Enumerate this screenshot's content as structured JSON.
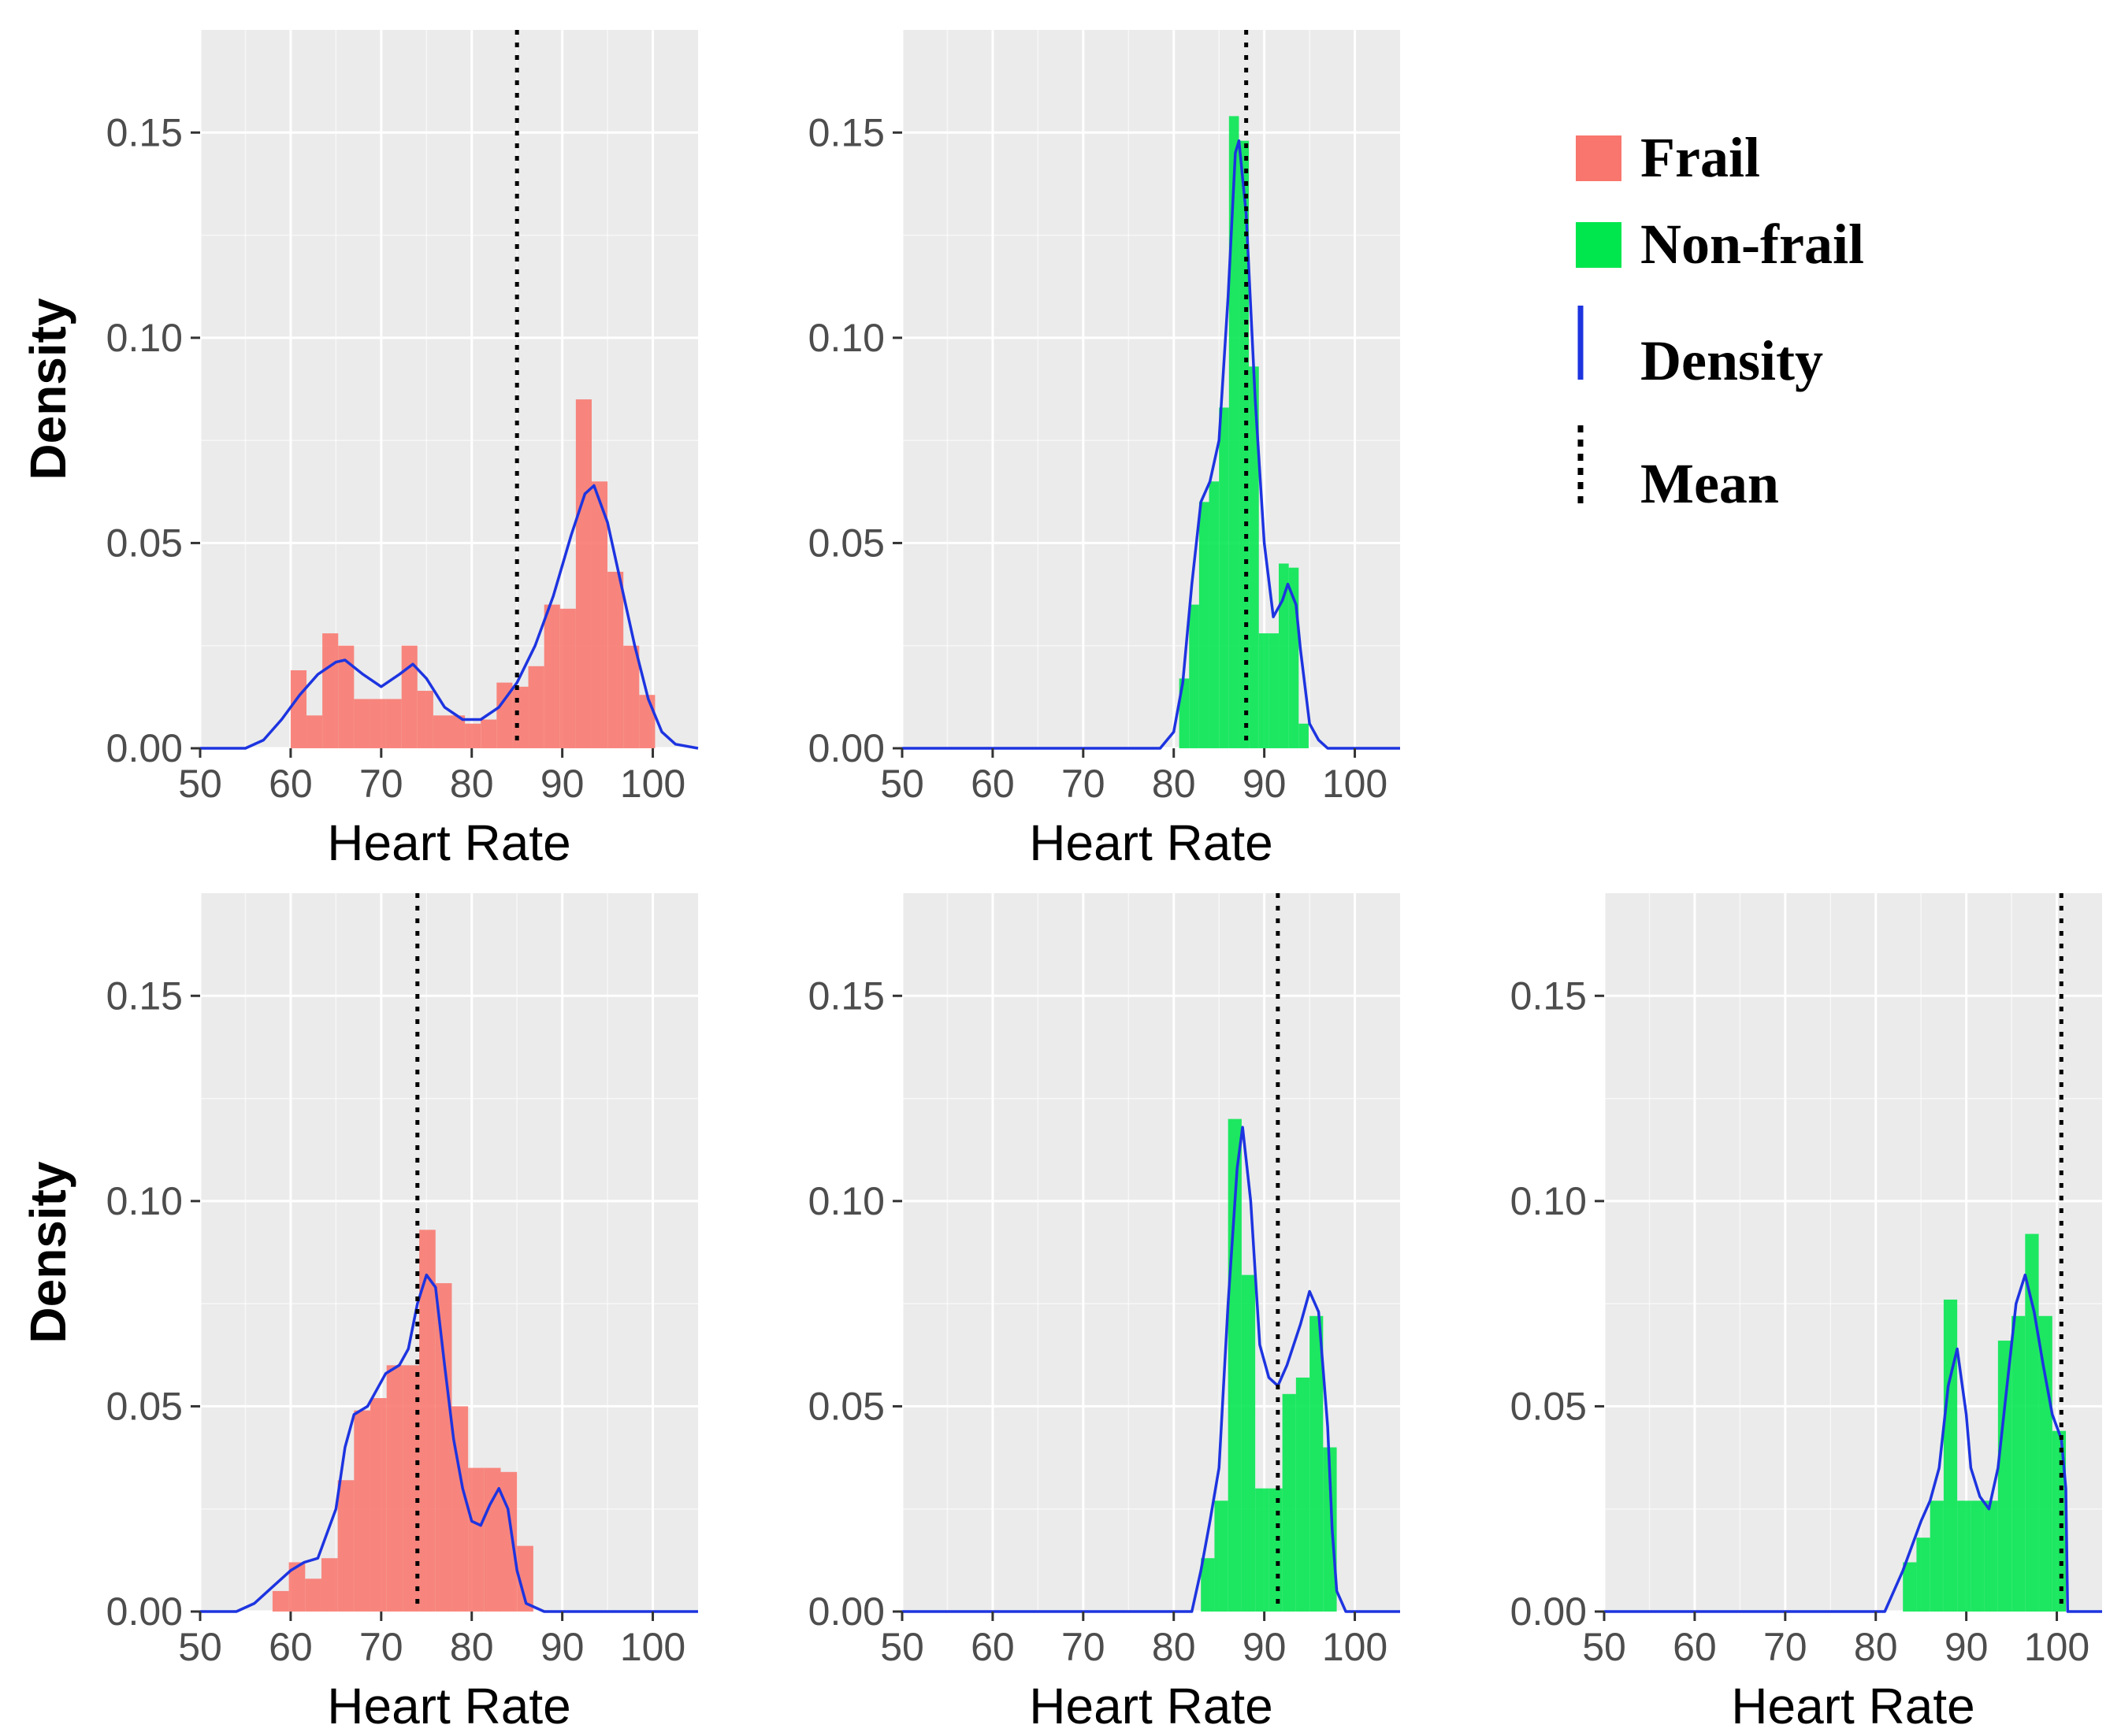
{
  "colors": {
    "frail": "#f8766d",
    "non_frail": "#00e64d",
    "density_line": "#1d34e0",
    "panel_bg": "#ebebeb",
    "grid_major": "#ffffff",
    "mean_line": "#000000"
  },
  "legend": {
    "frail": "Frail",
    "non_frail": "Non-frail",
    "density": "Density",
    "mean": "Mean"
  },
  "chart_data": [
    {
      "type": "histogram",
      "group": "Frail",
      "xlabel": "Heart Rate",
      "ylabel": "Density",
      "xlim": [
        50,
        105
      ],
      "ylim": [
        0,
        0.175
      ],
      "xticks": [
        "50",
        "60",
        "70",
        "80",
        "90",
        "100"
      ],
      "yticks": [
        "0.00",
        "0.05",
        "0.10",
        "0.15"
      ],
      "bin_width": 1.75,
      "bins": [
        [
          60,
          0.019
        ],
        [
          61.75,
          0.008
        ],
        [
          63.5,
          0.028
        ],
        [
          65.25,
          0.025
        ],
        [
          67,
          0.012
        ],
        [
          68.75,
          0.012
        ],
        [
          70.5,
          0.012
        ],
        [
          72.25,
          0.025
        ],
        [
          74,
          0.014
        ],
        [
          75.75,
          0.008
        ],
        [
          77.5,
          0.008
        ],
        [
          79.25,
          0.006
        ],
        [
          81,
          0.007
        ],
        [
          82.75,
          0.016
        ],
        [
          84.5,
          0.015
        ],
        [
          86.25,
          0.02
        ],
        [
          88,
          0.035
        ],
        [
          89.75,
          0.034
        ],
        [
          91.5,
          0.085
        ],
        [
          93.25,
          0.065
        ],
        [
          95,
          0.043
        ],
        [
          96.75,
          0.025
        ],
        [
          98.5,
          0.013
        ]
      ],
      "density": [
        [
          50,
          0
        ],
        [
          55,
          0
        ],
        [
          57,
          0.002
        ],
        [
          59,
          0.007
        ],
        [
          61,
          0.013
        ],
        [
          63,
          0.018
        ],
        [
          65,
          0.021
        ],
        [
          66,
          0.0215
        ],
        [
          68,
          0.018
        ],
        [
          70,
          0.015
        ],
        [
          72,
          0.018
        ],
        [
          73.5,
          0.0205
        ],
        [
          75,
          0.017
        ],
        [
          77,
          0.01
        ],
        [
          79,
          0.007
        ],
        [
          81,
          0.007
        ],
        [
          83,
          0.01
        ],
        [
          85,
          0.016
        ],
        [
          87,
          0.025
        ],
        [
          89,
          0.037
        ],
        [
          91,
          0.052
        ],
        [
          92.5,
          0.062
        ],
        [
          93.5,
          0.064
        ],
        [
          95,
          0.055
        ],
        [
          96.5,
          0.04
        ],
        [
          98,
          0.025
        ],
        [
          99.5,
          0.012
        ],
        [
          101,
          0.004
        ],
        [
          102.5,
          0.001
        ],
        [
          105,
          0
        ]
      ],
      "mean": 85
    },
    {
      "type": "histogram",
      "group": "Non-frail",
      "xlabel": "Heart Rate",
      "ylabel": "",
      "xlim": [
        50,
        105
      ],
      "ylim": [
        0,
        0.175
      ],
      "xticks": [
        "50",
        "60",
        "70",
        "80",
        "90",
        "100"
      ],
      "yticks": [
        "0.00",
        "0.05",
        "0.10",
        "0.15"
      ],
      "bin_width": 1.1,
      "bins": [
        [
          80.6,
          0.017
        ],
        [
          81.7,
          0.035
        ],
        [
          82.8,
          0.06
        ],
        [
          83.9,
          0.065
        ],
        [
          85,
          0.083
        ],
        [
          86.1,
          0.154
        ],
        [
          87.2,
          0.148
        ],
        [
          88.3,
          0.093
        ],
        [
          89.4,
          0.028
        ],
        [
          90.5,
          0.028
        ],
        [
          91.6,
          0.045
        ],
        [
          92.7,
          0.044
        ],
        [
          93.8,
          0.006
        ]
      ],
      "density": [
        [
          50,
          0
        ],
        [
          78.5,
          0
        ],
        [
          80,
          0.004
        ],
        [
          81,
          0.016
        ],
        [
          82,
          0.04
        ],
        [
          83,
          0.06
        ],
        [
          84,
          0.065
        ],
        [
          85,
          0.075
        ],
        [
          86,
          0.11
        ],
        [
          86.8,
          0.145
        ],
        [
          87.2,
          0.148
        ],
        [
          88,
          0.13
        ],
        [
          89,
          0.085
        ],
        [
          90,
          0.05
        ],
        [
          91,
          0.032
        ],
        [
          92,
          0.036
        ],
        [
          92.6,
          0.04
        ],
        [
          93.5,
          0.035
        ],
        [
          94,
          0.024
        ],
        [
          95,
          0.006
        ],
        [
          96,
          0.002
        ],
        [
          97,
          0
        ],
        [
          105,
          0
        ]
      ],
      "mean": 88
    },
    {
      "type": "histogram",
      "group": "Frail",
      "xlabel": "Heart Rate",
      "ylabel": "Density",
      "xlim": [
        50,
        105
      ],
      "ylim": [
        0,
        0.175
      ],
      "xticks": [
        "50",
        "60",
        "70",
        "80",
        "90",
        "100"
      ],
      "yticks": [
        "0.00",
        "0.05",
        "0.10",
        "0.15"
      ],
      "bin_width": 1.8,
      "bins": [
        [
          58,
          0.005
        ],
        [
          59.8,
          0.012
        ],
        [
          61.6,
          0.008
        ],
        [
          63.4,
          0.013
        ],
        [
          65.2,
          0.032
        ],
        [
          67,
          0.049
        ],
        [
          68.8,
          0.052
        ],
        [
          70.6,
          0.06
        ],
        [
          72.4,
          0.06
        ],
        [
          74.2,
          0.093
        ],
        [
          76,
          0.08
        ],
        [
          77.8,
          0.05
        ],
        [
          79.6,
          0.035
        ],
        [
          81.4,
          0.035
        ],
        [
          83.2,
          0.034
        ],
        [
          85,
          0.016
        ]
      ],
      "density": [
        [
          50,
          0
        ],
        [
          54,
          0
        ],
        [
          56,
          0.002
        ],
        [
          58,
          0.006
        ],
        [
          60,
          0.01
        ],
        [
          61.5,
          0.012
        ],
        [
          63,
          0.013
        ],
        [
          65,
          0.025
        ],
        [
          66,
          0.04
        ],
        [
          67,
          0.048
        ],
        [
          68.5,
          0.05
        ],
        [
          70.5,
          0.058
        ],
        [
          72,
          0.06
        ],
        [
          73,
          0.064
        ],
        [
          74,
          0.075
        ],
        [
          75,
          0.082
        ],
        [
          76,
          0.079
        ],
        [
          77,
          0.06
        ],
        [
          78,
          0.042
        ],
        [
          79,
          0.03
        ],
        [
          80,
          0.022
        ],
        [
          81,
          0.021
        ],
        [
          82,
          0.026
        ],
        [
          83,
          0.03
        ],
        [
          84,
          0.025
        ],
        [
          85,
          0.01
        ],
        [
          86,
          0.002
        ],
        [
          88,
          0
        ],
        [
          105,
          0
        ]
      ],
      "mean": 74
    },
    {
      "type": "histogram",
      "group": "Non-frail",
      "xlabel": "Heart Rate",
      "ylabel": "",
      "xlim": [
        50,
        105
      ],
      "ylim": [
        0,
        0.175
      ],
      "xticks": [
        "50",
        "60",
        "70",
        "80",
        "90",
        "100"
      ],
      "yticks": [
        "0.00",
        "0.05",
        "0.10",
        "0.15"
      ],
      "bin_width": 1.5,
      "bins": [
        [
          83,
          0.013
        ],
        [
          84.5,
          0.027
        ],
        [
          86,
          0.12
        ],
        [
          87.5,
          0.082
        ],
        [
          89,
          0.03
        ],
        [
          90.5,
          0.03
        ],
        [
          92,
          0.053
        ],
        [
          93.5,
          0.057
        ],
        [
          95,
          0.072
        ],
        [
          96.5,
          0.04
        ]
      ],
      "density": [
        [
          50,
          0
        ],
        [
          82,
          0
        ],
        [
          83,
          0.01
        ],
        [
          84,
          0.022
        ],
        [
          85,
          0.035
        ],
        [
          86,
          0.075
        ],
        [
          87,
          0.108
        ],
        [
          87.6,
          0.118
        ],
        [
          88.5,
          0.1
        ],
        [
          89.5,
          0.065
        ],
        [
          90.5,
          0.057
        ],
        [
          91.5,
          0.055
        ],
        [
          92.5,
          0.06
        ],
        [
          94,
          0.07
        ],
        [
          95,
          0.078
        ],
        [
          96,
          0.073
        ],
        [
          97,
          0.045
        ],
        [
          97.5,
          0.02
        ],
        [
          98,
          0.005
        ],
        [
          99,
          0
        ],
        [
          105,
          0
        ]
      ],
      "mean": 91.5
    },
    {
      "type": "histogram",
      "group": "Non-frail",
      "xlabel": "Heart Rate",
      "ylabel": "",
      "xlim": [
        50,
        105
      ],
      "ylim": [
        0,
        0.175
      ],
      "xticks": [
        "50",
        "60",
        "70",
        "80",
        "90",
        "100"
      ],
      "yticks": [
        "0.00",
        "0.05",
        "0.10",
        "0.15"
      ],
      "bin_width": 1.5,
      "bins": [
        [
          83,
          0.012
        ],
        [
          84.5,
          0.018
        ],
        [
          86,
          0.027
        ],
        [
          87.5,
          0.076
        ],
        [
          89,
          0.027
        ],
        [
          90.5,
          0.027
        ],
        [
          92,
          0.027
        ],
        [
          93.5,
          0.066
        ],
        [
          95,
          0.072
        ],
        [
          96.5,
          0.092
        ],
        [
          98,
          0.072
        ],
        [
          99.5,
          0.044
        ]
      ],
      "density": [
        [
          50,
          0
        ],
        [
          81,
          0
        ],
        [
          82,
          0.005
        ],
        [
          83,
          0.01
        ],
        [
          84,
          0.016
        ],
        [
          85,
          0.022
        ],
        [
          86,
          0.027
        ],
        [
          87,
          0.035
        ],
        [
          88,
          0.055
        ],
        [
          89,
          0.064
        ],
        [
          90,
          0.048
        ],
        [
          90.5,
          0.035
        ],
        [
          91.5,
          0.028
        ],
        [
          92.5,
          0.025
        ],
        [
          93.5,
          0.035
        ],
        [
          94.5,
          0.055
        ],
        [
          95.5,
          0.075
        ],
        [
          96.5,
          0.082
        ],
        [
          97.5,
          0.073
        ],
        [
          98.5,
          0.06
        ],
        [
          99.5,
          0.048
        ],
        [
          100.5,
          0.042
        ],
        [
          101,
          0.03
        ],
        [
          101.2,
          0
        ],
        [
          105,
          0
        ]
      ],
      "mean": 100.5
    }
  ]
}
